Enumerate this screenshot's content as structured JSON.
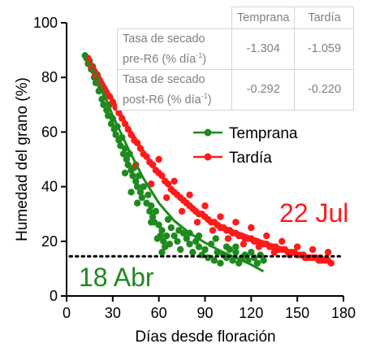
{
  "chart_data": {
    "type": "scatter",
    "xlabel": "Días desde floración",
    "ylabel": "Humedad del grano (%)",
    "xlim": [
      0,
      180
    ],
    "ylim": [
      0,
      100
    ],
    "x_ticks": [
      0,
      30,
      60,
      90,
      120,
      150,
      180
    ],
    "y_ticks": [
      0,
      20,
      40,
      60,
      80,
      100
    ],
    "legend_position": "center-right",
    "reference_line": {
      "y": 14.5,
      "style": "dotted",
      "color": "#000000"
    },
    "series": [
      {
        "name": "Temprana",
        "color": "#1e8a1e",
        "annotation": "18 Abr",
        "trend": [
          [
            12,
            88
          ],
          [
            20,
            80
          ],
          [
            30,
            66
          ],
          [
            40,
            54
          ],
          [
            50,
            43
          ],
          [
            60,
            34
          ],
          [
            70,
            27.5
          ],
          [
            80,
            23
          ],
          [
            90,
            19.5
          ],
          [
            100,
            16.5
          ],
          [
            110,
            14
          ],
          [
            120,
            11.5
          ],
          [
            128,
            9
          ]
        ],
        "points": [
          [
            12,
            88
          ],
          [
            13,
            87
          ],
          [
            14,
            85
          ],
          [
            15,
            86
          ],
          [
            16,
            83
          ],
          [
            17,
            84
          ],
          [
            18,
            80
          ],
          [
            19,
            78
          ],
          [
            20,
            81
          ],
          [
            21,
            75
          ],
          [
            22,
            77
          ],
          [
            23,
            72
          ],
          [
            24,
            70
          ],
          [
            25,
            74
          ],
          [
            26,
            68
          ],
          [
            27,
            66
          ],
          [
            28,
            70
          ],
          [
            29,
            63
          ],
          [
            30,
            65
          ],
          [
            31,
            61
          ],
          [
            32,
            59
          ],
          [
            33,
            62
          ],
          [
            34,
            57
          ],
          [
            35,
            55
          ],
          [
            36,
            58
          ],
          [
            37,
            52
          ],
          [
            38,
            54
          ],
          [
            39,
            50
          ],
          [
            40,
            48
          ],
          [
            41,
            52
          ],
          [
            42,
            46
          ],
          [
            43,
            44
          ],
          [
            44,
            47
          ],
          [
            45,
            42
          ],
          [
            46,
            40
          ],
          [
            47,
            44
          ],
          [
            48,
            38
          ],
          [
            49,
            36
          ],
          [
            50,
            40
          ],
          [
            52,
            34
          ],
          [
            53,
            37
          ],
          [
            54,
            31
          ],
          [
            55,
            33
          ],
          [
            56,
            29
          ],
          [
            57,
            27
          ],
          [
            58,
            31
          ],
          [
            60,
            26
          ],
          [
            61,
            22
          ],
          [
            62,
            24
          ],
          [
            63,
            20
          ],
          [
            64,
            18
          ],
          [
            65,
            22
          ],
          [
            67,
            19
          ],
          [
            68,
            25
          ],
          [
            70,
            22
          ],
          [
            72,
            20
          ],
          [
            74,
            17
          ],
          [
            76,
            23
          ],
          [
            78,
            21
          ],
          [
            80,
            19
          ],
          [
            82,
            16
          ],
          [
            84,
            20
          ],
          [
            86,
            18
          ],
          [
            88,
            15
          ],
          [
            90,
            17
          ],
          [
            92,
            14
          ],
          [
            94,
            19
          ],
          [
            96,
            13
          ],
          [
            98,
            16
          ],
          [
            100,
            12
          ],
          [
            102,
            15
          ],
          [
            104,
            14
          ],
          [
            106,
            17
          ],
          [
            108,
            13
          ],
          [
            110,
            16
          ],
          [
            112,
            12
          ],
          [
            114,
            14
          ],
          [
            116,
            15
          ],
          [
            118,
            13
          ],
          [
            120,
            16
          ],
          [
            122,
            14
          ],
          [
            124,
            12
          ],
          [
            126,
            15
          ],
          [
            128,
            13
          ],
          [
            42,
            38
          ],
          [
            38,
            45
          ],
          [
            46,
            34
          ],
          [
            55,
            27
          ],
          [
            59,
            21
          ],
          [
            62,
            16
          ],
          [
            66,
            28
          ],
          [
            73,
            24
          ],
          [
            80,
            23
          ],
          [
            86,
            22
          ],
          [
            97,
            21
          ],
          [
            104,
            18
          ],
          [
            110,
            18
          ]
        ]
      },
      {
        "name": "Tardía",
        "color": "#ff1a1a",
        "annotation": "22 Jul",
        "trend": [
          [
            14,
            87
          ],
          [
            20,
            82
          ],
          [
            30,
            72
          ],
          [
            40,
            62
          ],
          [
            50,
            53
          ],
          [
            60,
            45
          ],
          [
            70,
            38
          ],
          [
            80,
            33
          ],
          [
            90,
            29
          ],
          [
            100,
            26
          ],
          [
            110,
            23.5
          ],
          [
            120,
            21.5
          ],
          [
            130,
            19.5
          ],
          [
            140,
            17.5
          ],
          [
            150,
            15.5
          ],
          [
            160,
            14
          ],
          [
            172,
            13
          ]
        ],
        "points": [
          [
            14,
            87
          ],
          [
            16,
            84
          ],
          [
            18,
            82
          ],
          [
            20,
            80
          ],
          [
            22,
            78
          ],
          [
            24,
            76
          ],
          [
            26,
            74
          ],
          [
            28,
            73
          ],
          [
            30,
            71
          ],
          [
            32,
            69
          ],
          [
            34,
            67
          ],
          [
            36,
            65
          ],
          [
            38,
            63
          ],
          [
            40,
            61
          ],
          [
            42,
            59
          ],
          [
            44,
            57
          ],
          [
            46,
            56
          ],
          [
            48,
            54
          ],
          [
            50,
            52
          ],
          [
            52,
            51
          ],
          [
            54,
            49
          ],
          [
            56,
            48
          ],
          [
            58,
            46
          ],
          [
            60,
            45
          ],
          [
            62,
            44
          ],
          [
            64,
            42
          ],
          [
            66,
            41
          ],
          [
            68,
            39
          ],
          [
            70,
            38
          ],
          [
            72,
            37
          ],
          [
            74,
            36
          ],
          [
            76,
            35
          ],
          [
            78,
            34
          ],
          [
            80,
            33
          ],
          [
            82,
            32
          ],
          [
            84,
            31
          ],
          [
            86,
            30
          ],
          [
            88,
            30
          ],
          [
            90,
            29
          ],
          [
            92,
            28
          ],
          [
            94,
            27
          ],
          [
            96,
            27
          ],
          [
            98,
            26
          ],
          [
            100,
            25
          ],
          [
            102,
            25
          ],
          [
            104,
            24
          ],
          [
            106,
            24
          ],
          [
            108,
            23
          ],
          [
            110,
            23
          ],
          [
            112,
            22
          ],
          [
            114,
            22
          ],
          [
            116,
            21
          ],
          [
            118,
            21
          ],
          [
            120,
            21
          ],
          [
            122,
            20
          ],
          [
            124,
            20
          ],
          [
            126,
            19
          ],
          [
            128,
            19
          ],
          [
            130,
            19
          ],
          [
            132,
            18
          ],
          [
            134,
            18
          ],
          [
            136,
            18
          ],
          [
            138,
            17
          ],
          [
            140,
            17
          ],
          [
            142,
            17
          ],
          [
            144,
            16
          ],
          [
            146,
            16
          ],
          [
            148,
            16
          ],
          [
            150,
            15
          ],
          [
            152,
            15
          ],
          [
            154,
            15
          ],
          [
            156,
            14
          ],
          [
            158,
            14
          ],
          [
            160,
            14
          ],
          [
            162,
            14
          ],
          [
            164,
            13
          ],
          [
            166,
            13
          ],
          [
            168,
            13
          ],
          [
            170,
            13
          ],
          [
            172,
            12
          ],
          [
            45,
            48
          ],
          [
            55,
            41
          ],
          [
            65,
            36
          ],
          [
            75,
            31
          ],
          [
            85,
            27
          ],
          [
            95,
            24
          ],
          [
            105,
            21
          ],
          [
            115,
            19
          ],
          [
            125,
            18
          ],
          [
            135,
            16
          ],
          [
            145,
            15
          ],
          [
            155,
            14
          ],
          [
            165,
            14
          ],
          [
            60,
            50
          ],
          [
            70,
            42
          ],
          [
            80,
            37
          ],
          [
            90,
            33
          ],
          [
            100,
            29
          ],
          [
            110,
            27
          ],
          [
            120,
            25
          ],
          [
            130,
            22
          ],
          [
            140,
            20
          ],
          [
            150,
            18
          ],
          [
            160,
            17
          ],
          [
            170,
            16
          ]
        ]
      }
    ]
  },
  "table": {
    "headers": [
      "Temprana",
      "Tardía"
    ],
    "rows": [
      {
        "label_line1": "Tasa de secado",
        "label_line2": "pre-R6 (% día",
        "sup": "-1",
        "label_end": ")",
        "values": [
          "-1.304",
          "-1.059"
        ]
      },
      {
        "label_line1": "Tasa de secado",
        "label_line2": "post-R6 (% día",
        "sup": "-1",
        "label_end": ")",
        "values": [
          "-0.292",
          "-0.220"
        ]
      }
    ]
  }
}
